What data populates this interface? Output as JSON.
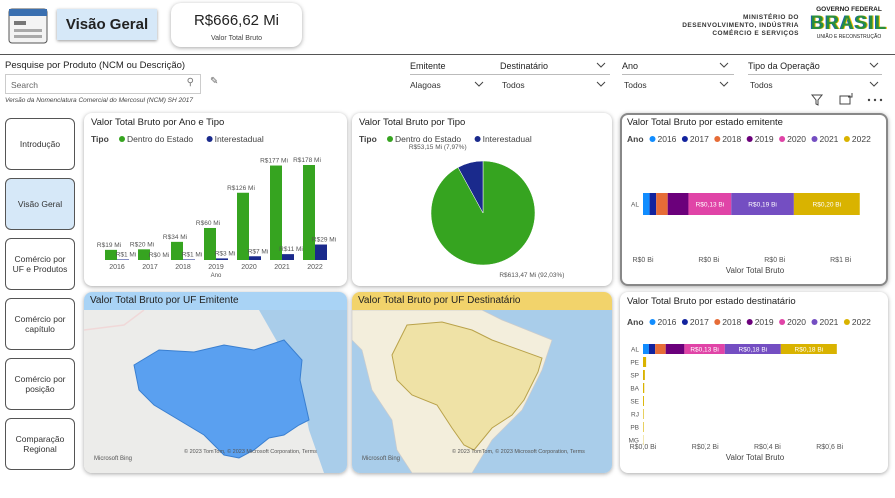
{
  "header": {
    "title": "Visão Geral",
    "kpi_value": "R$666,62 Mi",
    "kpi_label": "Valor Total Bruto",
    "ministry": [
      "MINISTÉRIO DO",
      "DESENVOLVIMENTO, INDÚSTRIA",
      "COMÉRCIO E SERVIÇOS"
    ],
    "gov_top": "GOVERNO FEDERAL",
    "gov_name": "BRASIL",
    "gov_motto": "UNIÃO E RECONSTRUÇÃO"
  },
  "search": {
    "label": "Pesquise por Produto (NCM ou Descrição)",
    "placeholder": "Search",
    "note": "Versão da Nomenclatura Comercial do Mercosul (NCM) SH 2017"
  },
  "filters": [
    {
      "label": "Emitente",
      "value": "Alagoas"
    },
    {
      "label": "Destinatário",
      "value": "Todos"
    },
    {
      "label": "Ano",
      "value": "Todos"
    },
    {
      "label": "Tipo da Operação",
      "value": "Todos"
    }
  ],
  "nav": [
    "Introdução",
    "Visão Geral",
    "Comércio por UF e Produtos",
    "Comércio por capítulo",
    "Comércio por posição",
    "Comparação Regional"
  ],
  "charts": [
    {
      "type": "bar",
      "title": "Valor Total Bruto por Ano e Tipo",
      "legend_title": "Tipo",
      "xlabel": "Ano",
      "categories": [
        "2016",
        "2017",
        "2018",
        "2019",
        "2020",
        "2021",
        "2022"
      ],
      "series": [
        {
          "name": "Dentro do Estado",
          "color": "#36a420",
          "values": [
            19,
            20,
            34,
            60,
            126,
            177,
            178
          ],
          "value_labels": [
            "R$19 Mi",
            "R$20 Mi",
            "R$34 Mi",
            "R$60 Mi",
            "R$126 Mi",
            "R$177 Mi",
            "R$178 Mi"
          ]
        },
        {
          "name": "Interestadual",
          "color": "#1a2a8c",
          "values": [
            1,
            0,
            1,
            3,
            7,
            11,
            29
          ],
          "value_labels": [
            "R$1 Mi",
            "R$0 Mi",
            "R$1 Mi",
            "R$3 Mi",
            "R$7 Mi",
            "R$11 Mi",
            "R$29 Mi"
          ]
        }
      ]
    },
    {
      "type": "pie",
      "title": "Valor Total Bruto por Tipo",
      "legend_title": "Tipo",
      "series": [
        {
          "name": "Dentro do Estado",
          "color": "#36a420"
        },
        {
          "name": "Interestadual",
          "color": "#1a2a8c"
        }
      ],
      "values": [
        613.47,
        53.15
      ],
      "value_labels": [
        "R$613,47 Mi (92,03%)",
        "R$53,15 Mi (7,97%)"
      ]
    },
    {
      "type": "hbar",
      "title": "Valor Total Bruto por estado emitente",
      "legend_title": "Ano",
      "xlabel": "Valor Total Bruto",
      "categories": [
        "AL"
      ],
      "xlim": [
        0,
        0.68
      ],
      "xticks": [
        {
          "value": 0,
          "label": "R$0 Bi"
        },
        {
          "value": 0.2,
          "label": "R$0 Bi"
        },
        {
          "value": 0.4,
          "label": "R$0 Bi"
        },
        {
          "value": 0.6,
          "label": "R$1 Bi"
        }
      ],
      "series": [
        {
          "name": "2016",
          "color": "#118dff",
          "values": [
            0.02
          ],
          "value_labels": [
            null
          ]
        },
        {
          "name": "2017",
          "color": "#12239e",
          "values": [
            0.02
          ],
          "value_labels": [
            null
          ]
        },
        {
          "name": "2018",
          "color": "#e66c37",
          "values": [
            0.035
          ],
          "value_labels": [
            null
          ]
        },
        {
          "name": "2019",
          "color": "#6b007b",
          "values": [
            0.063
          ],
          "value_labels": [
            null
          ]
        },
        {
          "name": "2020",
          "color": "#e044a7",
          "values": [
            0.13
          ],
          "value_labels": [
            "R$0,13 Bi"
          ]
        },
        {
          "name": "2021",
          "color": "#744ec2",
          "values": [
            0.19
          ],
          "value_labels": [
            "R$0,19 Bi"
          ]
        },
        {
          "name": "2022",
          "color": "#d9b300",
          "values": [
            0.2
          ],
          "value_labels": [
            "R$0,20 Bi"
          ]
        }
      ]
    },
    {
      "type": "hbar",
      "title": "Valor Total Bruto por estado destinatário",
      "legend_title": "Ano",
      "xlabel": "Valor Total Bruto",
      "categories": [
        "AL",
        "PE",
        "SP",
        "BA",
        "SE",
        "RJ",
        "PB",
        "MG"
      ],
      "xlim": [
        0,
        0.72
      ],
      "xticks": [
        {
          "value": 0,
          "label": "R$0,0 Bi"
        },
        {
          "value": 0.2,
          "label": "R$0,2 Bi"
        },
        {
          "value": 0.4,
          "label": "R$0,4 Bi"
        },
        {
          "value": 0.6,
          "label": "R$0,6 Bi"
        }
      ],
      "series": [
        {
          "name": "2016",
          "color": "#118dff",
          "values": [
            0.019,
            null,
            null,
            null,
            null,
            null,
            null,
            null
          ],
          "value_labels": [
            null,
            null,
            null,
            null,
            null,
            null,
            null,
            null
          ]
        },
        {
          "name": "2017",
          "color": "#12239e",
          "values": [
            0.02,
            null,
            null,
            null,
            null,
            null,
            null,
            null
          ],
          "value_labels": [
            null,
            null,
            null,
            null,
            null,
            null,
            null,
            null
          ]
        },
        {
          "name": "2018",
          "color": "#e66c37",
          "values": [
            0.034,
            null,
            null,
            null,
            null,
            null,
            null,
            null
          ],
          "value_labels": [
            null,
            null,
            null,
            null,
            null,
            null,
            null,
            null
          ]
        },
        {
          "name": "2019",
          "color": "#6b007b",
          "values": [
            0.06,
            null,
            null,
            null,
            null,
            null,
            null,
            null
          ],
          "value_labels": [
            null,
            null,
            null,
            null,
            null,
            null,
            null,
            null
          ]
        },
        {
          "name": "2020",
          "color": "#e044a7",
          "values": [
            0.13,
            null,
            null,
            null,
            null,
            null,
            null,
            null
          ],
          "value_labels": [
            "R$0,13 Bi",
            null,
            null,
            null,
            null,
            null,
            null,
            null
          ]
        },
        {
          "name": "2021",
          "color": "#744ec2",
          "values": [
            0.18,
            null,
            null,
            null,
            null,
            null,
            null,
            null
          ],
          "value_labels": [
            "R$0,18 Bi",
            null,
            null,
            null,
            null,
            null,
            null,
            null
          ]
        },
        {
          "name": "2022",
          "color": "#d9b300",
          "values": [
            0.18,
            0.01,
            0.006,
            0.004,
            0.003,
            0.002,
            0.002,
            0.001
          ],
          "value_labels": [
            "R$0,18 Bi",
            null,
            null,
            null,
            null,
            null,
            null,
            null
          ]
        }
      ]
    }
  ],
  "maps": [
    {
      "title": "Valor Total Bruto por UF Emitente",
      "brand": "Microsoft Bing",
      "attribution": "© 2023 TomTom, © 2023 Microsoft Corporation, Terms"
    },
    {
      "title": "Valor Total Bruto por UF Destinatário",
      "brand": "Microsoft Bing",
      "attribution": "© 2023 TomTom, © 2023 Microsoft Corporation, Terms"
    }
  ]
}
